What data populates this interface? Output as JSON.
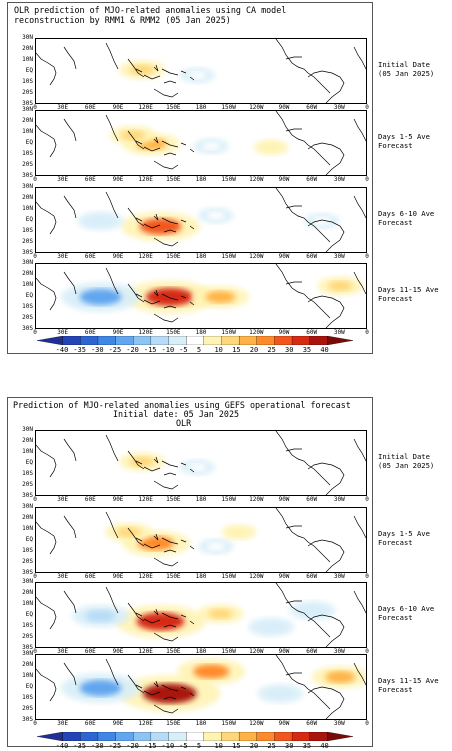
{
  "figures": [
    {
      "title_lines": [
        "OLR prediction of MJO-related anomalies using CA model",
        "reconstruction by RMM1 & RMM2 (05 Jan 2025)"
      ],
      "panel_labels": [
        [
          "Initial Date",
          "(05 Jan 2025)"
        ],
        [
          "Days 1-5 Ave",
          "Forecast"
        ],
        [
          "Days 6-10 Ave",
          "Forecast"
        ],
        [
          "Days 11-15 Ave",
          "Forecast"
        ]
      ]
    },
    {
      "title_lines": [
        "Prediction of MJO-related anomalies using GEFS operational forecast",
        "Initial date: 05 Jan 2025",
        "OLR"
      ],
      "panel_labels": [
        [
          "Initial Date",
          "(05 Jan 2025)"
        ],
        [
          "Days 1-5 Ave",
          "Forecast"
        ],
        [
          "Days 6-10 Ave",
          "Forecast"
        ],
        [
          "Days 11-15 Ave",
          "Forecast"
        ]
      ]
    }
  ],
  "axes": {
    "lat_labels": [
      "30N",
      "20N",
      "10N",
      "EQ",
      "10S",
      "20S",
      "30S"
    ],
    "lon_labels": [
      "0",
      "30E",
      "60E",
      "90E",
      "120E",
      "150E",
      "180",
      "150W",
      "120W",
      "90W",
      "60W",
      "30W",
      "0"
    ]
  },
  "colorbar": {
    "labels": [
      "-40",
      "-35",
      "-30",
      "-25",
      "-20",
      "-15",
      "-10",
      "-5",
      "5",
      "10",
      "15",
      "20",
      "25",
      "30",
      "35",
      "40"
    ],
    "colors": [
      "#1f2f96",
      "#2345b5",
      "#2d66d3",
      "#3f86e6",
      "#62a6ef",
      "#8cc4f4",
      "#b7dcf7",
      "#d8eef8",
      "#ffffff",
      "#fff3b3",
      "#ffd77a",
      "#ffb347",
      "#ff8a2a",
      "#f2561d",
      "#d62a13",
      "#a9140d",
      "#7a0a08"
    ]
  },
  "chart_data": [
    {
      "type": "heatmap",
      "title": "OLR prediction of MJO-related anomalies using CA model reconstruction by RMM1 & RMM2 (05 Jan 2025)",
      "xlabel": "",
      "ylabel": "",
      "x_range": [
        "0",
        "0"
      ],
      "y_range": [
        "30S",
        "30N"
      ],
      "colorbar_ticks": [
        -40,
        -35,
        -30,
        -25,
        -20,
        -15,
        -10,
        -5,
        5,
        10,
        15,
        20,
        25,
        30,
        35,
        40
      ],
      "panels": [
        {
          "label": "Initial Date (05 Jan 2025)",
          "anomalies": [
            {
              "lon": 115,
              "lat": 2,
              "value": 10
            },
            {
              "lon": 175,
              "lat": -3,
              "value": -5
            }
          ]
        },
        {
          "label": "Days 1-5 Ave Forecast",
          "anomalies": [
            {
              "lon": 125,
              "lat": 0,
              "value": 15
            },
            {
              "lon": 105,
              "lat": 8,
              "value": 10
            },
            {
              "lon": 190,
              "lat": -2,
              "value": -5
            },
            {
              "lon": 255,
              "lat": -3,
              "value": 5
            }
          ]
        },
        {
          "label": "Days 6-10 Ave Forecast",
          "anomalies": [
            {
              "lon": 135,
              "lat": -5,
              "value": 25
            },
            {
              "lon": 70,
              "lat": 0,
              "value": -10
            },
            {
              "lon": 195,
              "lat": 5,
              "value": -5
            },
            {
              "lon": 310,
              "lat": 0,
              "value": -5
            }
          ]
        },
        {
          "label": "Days 11-15 Ave Forecast",
          "anomalies": [
            {
              "lon": 145,
              "lat": 0,
              "value": 30
            },
            {
              "lon": 70,
              "lat": 0,
              "value": -25
            },
            {
              "lon": 200,
              "lat": 0,
              "value": 15
            },
            {
              "lon": 330,
              "lat": 10,
              "value": 10
            }
          ]
        }
      ]
    },
    {
      "type": "heatmap",
      "title": "Prediction of MJO-related anomalies using GEFS operational forecast Initial date: 05 Jan 2025 OLR",
      "xlabel": "",
      "ylabel": "",
      "x_range": [
        "0",
        "0"
      ],
      "y_range": [
        "30S",
        "30N"
      ],
      "colorbar_ticks": [
        -40,
        -35,
        -30,
        -25,
        -20,
        -15,
        -10,
        -5,
        5,
        10,
        15,
        20,
        25,
        30,
        35,
        40
      ],
      "panels": [
        {
          "label": "Initial Date (05 Jan 2025)",
          "anomalies": [
            {
              "lon": 115,
              "lat": 2,
              "value": 10
            },
            {
              "lon": 175,
              "lat": -3,
              "value": -5
            }
          ]
        },
        {
          "label": "Days 1-5 Ave Forecast",
          "anomalies": [
            {
              "lon": 130,
              "lat": -2,
              "value": 20
            },
            {
              "lon": 100,
              "lat": 8,
              "value": 10
            },
            {
              "lon": 195,
              "lat": -5,
              "value": -5
            },
            {
              "lon": 220,
              "lat": 8,
              "value": 5
            }
          ]
        },
        {
          "label": "Days 6-10 Ave Forecast",
          "anomalies": [
            {
              "lon": 135,
              "lat": -5,
              "value": 30
            },
            {
              "lon": 70,
              "lat": 0,
              "value": -15
            },
            {
              "lon": 200,
              "lat": 2,
              "value": 10
            },
            {
              "lon": 255,
              "lat": -10,
              "value": -10
            },
            {
              "lon": 300,
              "lat": 5,
              "value": -10
            }
          ]
        },
        {
          "label": "Days 11-15 Ave Forecast",
          "anomalies": [
            {
              "lon": 145,
              "lat": -5,
              "value": 35
            },
            {
              "lon": 70,
              "lat": 0,
              "value": -25
            },
            {
              "lon": 190,
              "lat": 15,
              "value": 20
            },
            {
              "lon": 265,
              "lat": -5,
              "value": -10
            },
            {
              "lon": 330,
              "lat": 10,
              "value": 15
            }
          ]
        }
      ]
    }
  ]
}
